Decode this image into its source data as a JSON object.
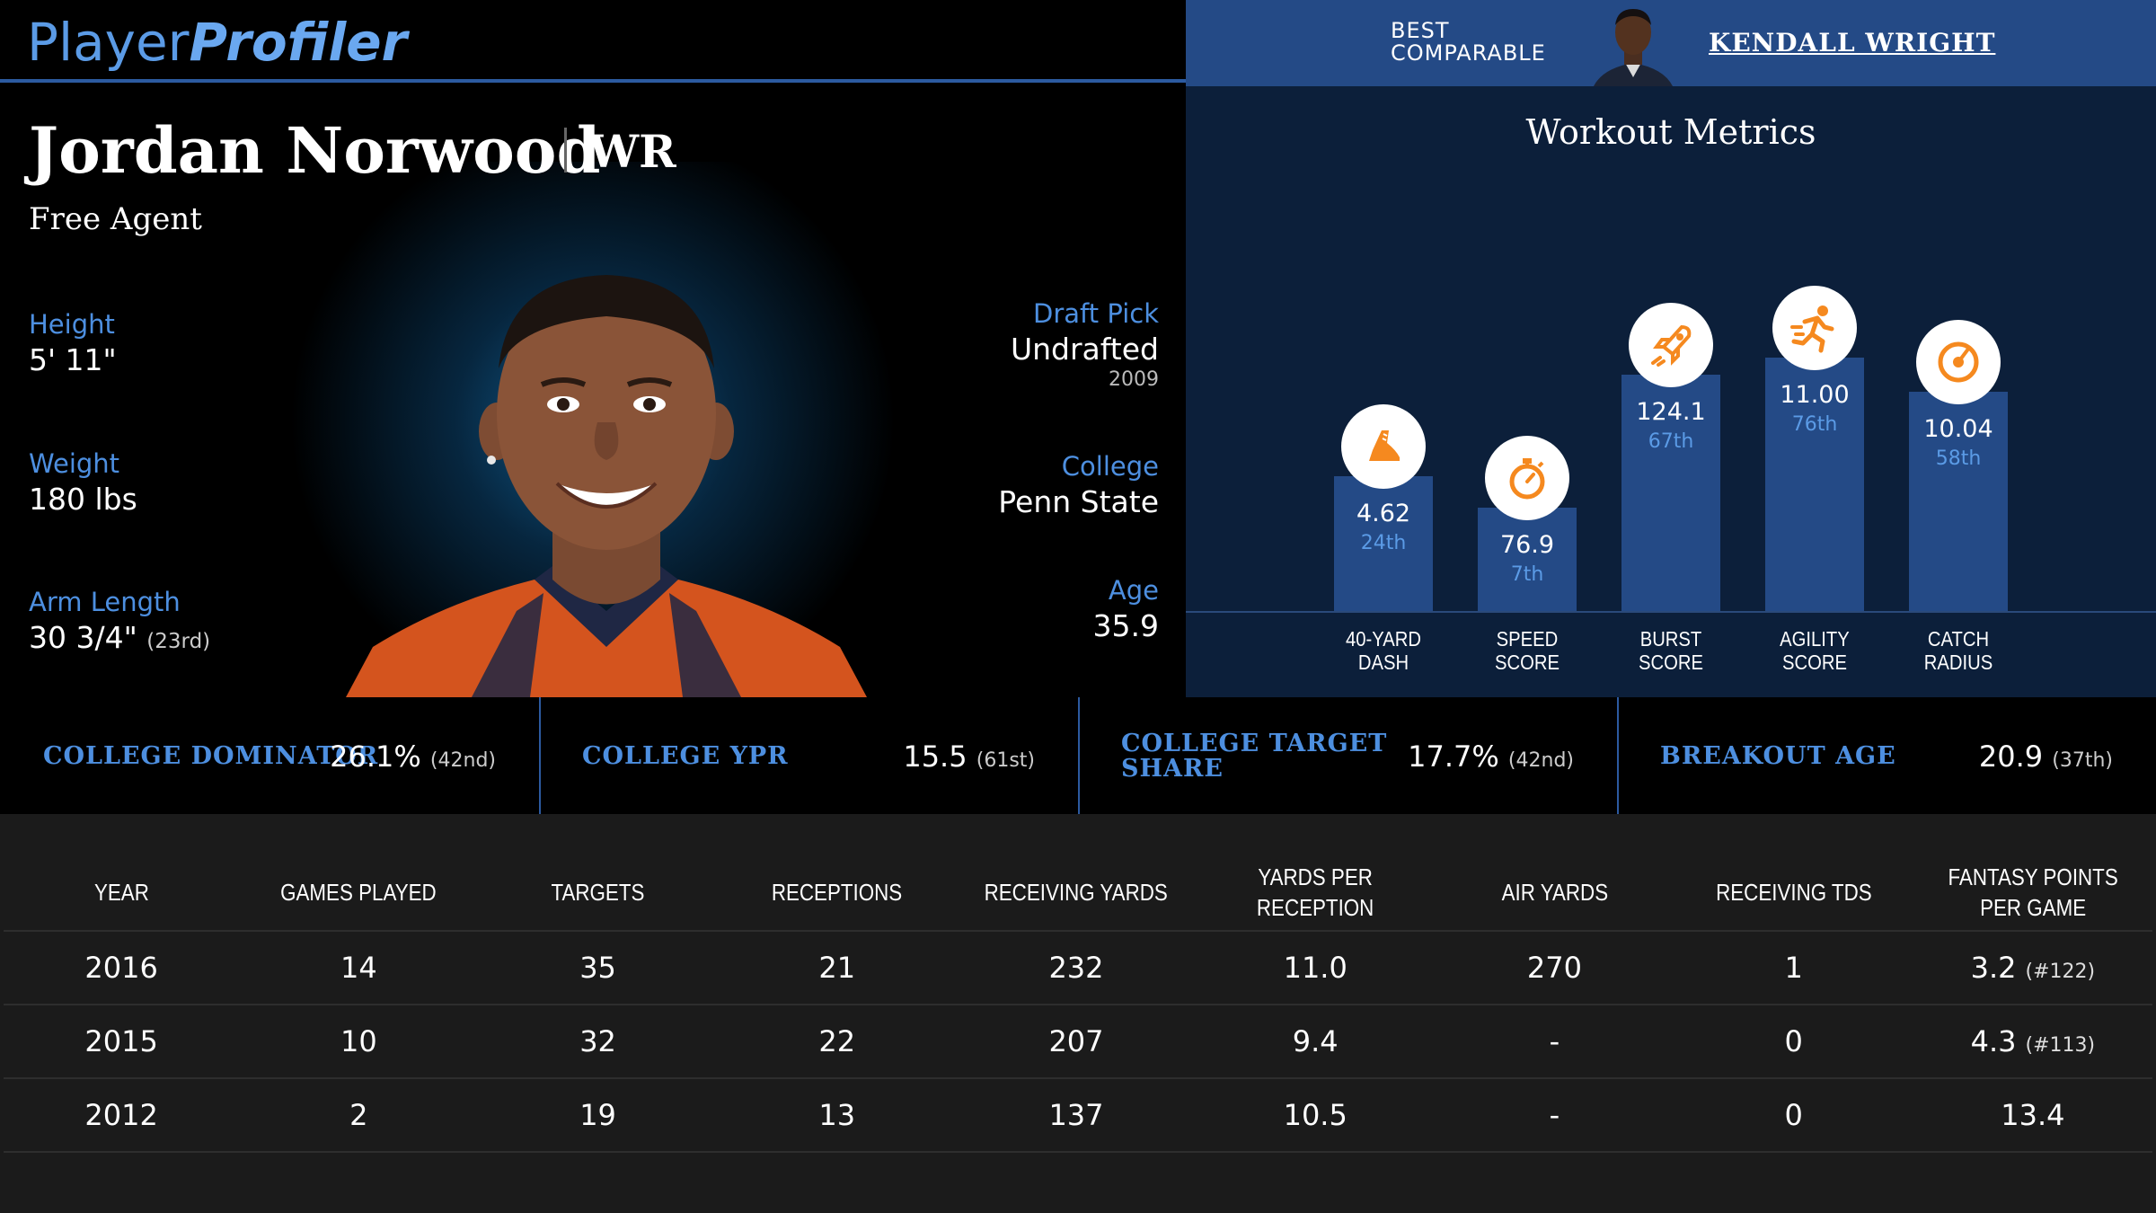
{
  "brand": {
    "logo_part1": "Player",
    "logo_part2": "Profiler"
  },
  "player": {
    "name": "Jordan Norwood",
    "position": "WR",
    "team": "Free Agent",
    "height_label": "Height",
    "height": "5' 11\"",
    "weight_label": "Weight",
    "weight": "180 lbs",
    "arm_label": "Arm Length",
    "arm": "30 3/4\"",
    "arm_rank": "(23rd)",
    "draft_label": "Draft Pick",
    "draft": "Undrafted",
    "draft_year": "2009",
    "college_label": "College",
    "college": "Penn State",
    "age_label": "Age",
    "age": "35.9"
  },
  "comparable": {
    "label_line1": "BEST",
    "label_line2": "COMPARABLE",
    "name": "KENDALL WRIGHT"
  },
  "workout": {
    "title": "Workout Metrics",
    "metrics": [
      {
        "label1": "40-YARD",
        "label2": "DASH",
        "value": "4.62",
        "rank": "24th",
        "percentile": 24,
        "icon": "shoe-icon"
      },
      {
        "label1": "SPEED",
        "label2": "SCORE",
        "value": "76.9",
        "rank": "7th",
        "percentile": 7,
        "icon": "stopwatch-icon"
      },
      {
        "label1": "BURST",
        "label2": "SCORE",
        "value": "124.1",
        "rank": "67th",
        "percentile": 67,
        "icon": "rocket-icon"
      },
      {
        "label1": "AGILITY",
        "label2": "SCORE",
        "value": "11.00",
        "rank": "76th",
        "percentile": 76,
        "icon": "runner-icon"
      },
      {
        "label1": "CATCH",
        "label2": "RADIUS",
        "value": "10.04",
        "rank": "58th",
        "percentile": 58,
        "icon": "target-icon"
      }
    ]
  },
  "college_stats": [
    {
      "label1": "COLLEGE DOMINATOR",
      "label2": "",
      "value": "26.1%",
      "rank": "(42nd)"
    },
    {
      "label1": "COLLEGE YPR",
      "label2": "",
      "value": "15.5",
      "rank": "(61st)"
    },
    {
      "label1": "COLLEGE TARGET",
      "label2": "SHARE",
      "value": "17.7%",
      "rank": "(42nd)"
    },
    {
      "label1": "BREAKOUT AGE",
      "label2": "",
      "value": "20.9",
      "rank": "(37th)"
    }
  ],
  "table": {
    "headers": [
      "YEAR",
      "GAMES PLAYED",
      "TARGETS",
      "RECEPTIONS",
      "RECEIVING YARDS",
      "YARDS PER RECEPTION",
      "AIR YARDS",
      "RECEIVING TDS",
      "FANTASY POINTS PER GAME"
    ],
    "rows": [
      {
        "year": "2016",
        "games": "14",
        "targets": "35",
        "receptions": "21",
        "yards": "232",
        "ypr": "11.0",
        "air": "270",
        "tds": "1",
        "fpg": "3.2",
        "fpg_rank": "(#122)"
      },
      {
        "year": "2015",
        "games": "10",
        "targets": "32",
        "receptions": "22",
        "yards": "207",
        "ypr": "9.4",
        "air": "-",
        "tds": "0",
        "fpg": "4.3",
        "fpg_rank": "(#113)"
      },
      {
        "year": "2012",
        "games": "2",
        "targets": "19",
        "receptions": "13",
        "yards": "137",
        "ypr": "10.5",
        "air": "-",
        "tds": "0",
        "fpg": "13.4",
        "fpg_rank": ""
      }
    ]
  },
  "colors": {
    "accent_blue": "#4d8fe0",
    "bar_blue": "#244a86",
    "icon_orange": "#f5891f"
  }
}
